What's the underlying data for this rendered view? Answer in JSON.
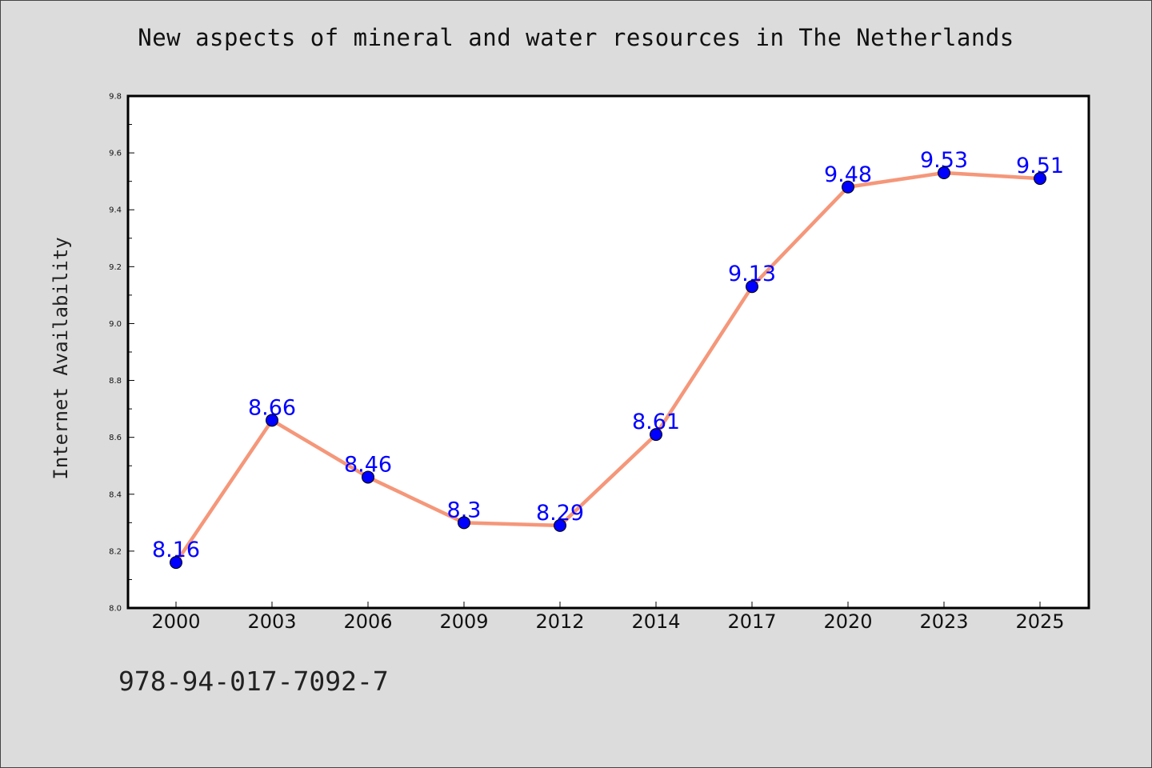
{
  "chart_data": {
    "type": "line",
    "title": "New aspects of mineral and water resources in The Netherlands",
    "xlabel": "",
    "ylabel": "Internet Availability",
    "categories": [
      "2000",
      "2003",
      "2006",
      "2009",
      "2012",
      "2014",
      "2017",
      "2020",
      "2023",
      "2025"
    ],
    "series": [
      {
        "values": [
          8.16,
          8.66,
          8.46,
          8.3,
          8.29,
          8.61,
          9.13,
          9.48,
          9.53,
          9.51
        ],
        "data_labels": [
          "8.16",
          "8.66",
          "8.46",
          "8.3",
          "8.29",
          "8.61",
          "9.13",
          "9.48",
          "9.53",
          "9.51"
        ],
        "line_color": "#f5977a",
        "marker_color": "#0000ff",
        "label_color": "#0000ff"
      }
    ],
    "ylim": [
      8.0,
      9.8
    ],
    "yticks": [
      "8.0",
      "8.2",
      "8.4",
      "8.6",
      "8.8",
      "9.0",
      "9.2",
      "9.4",
      "9.6",
      "9.8"
    ],
    "grid": false,
    "legend": "none",
    "plot_background": "#ffffff",
    "figure_background": "#dcdcdc"
  },
  "footer": {
    "isbn": "978-94-017-7092-7"
  }
}
